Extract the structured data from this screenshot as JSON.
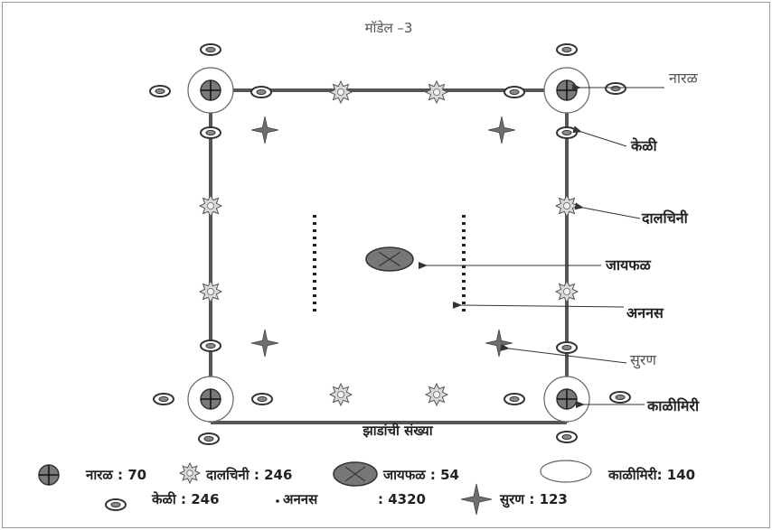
{
  "title": "मॉडेल –3",
  "labels": {
    "naral": "नारळ",
    "keli": "केळी",
    "dalchini": "दालचिनी",
    "jaiphal": "जायफळ",
    "ananas": "अननस",
    "suran": "सुरण",
    "kalimiri": "काळीमिरी",
    "bottom_caption": "झाडांची संख्या"
  },
  "legend": {
    "row1": [
      {
        "icon": "coconut-icon",
        "text": "नारळ : 70"
      },
      {
        "icon": "cinnamon-icon",
        "text": "दालचिनी : 246"
      },
      {
        "icon": "nutmeg-icon",
        "text": "जायफळ   : 54"
      },
      {
        "icon": "black-pepper-icon",
        "text": "काळीमिरी: 140"
      }
    ],
    "row2": [
      {
        "icon": "banana-icon",
        "text": "केळी : 246"
      },
      {
        "icon": "pineapple-icon",
        "text": "अननस"
      },
      {
        "icon": "pineapple-icon",
        "text": ": 4320"
      },
      {
        "icon": "elephant-foot-yam-icon",
        "text": "सुरण : 123"
      }
    ]
  },
  "colors": {
    "line": "#555555",
    "icon_fill": "#7a7a7a",
    "icon_stroke": "#333333",
    "star_fill": "#d9d9d9"
  }
}
